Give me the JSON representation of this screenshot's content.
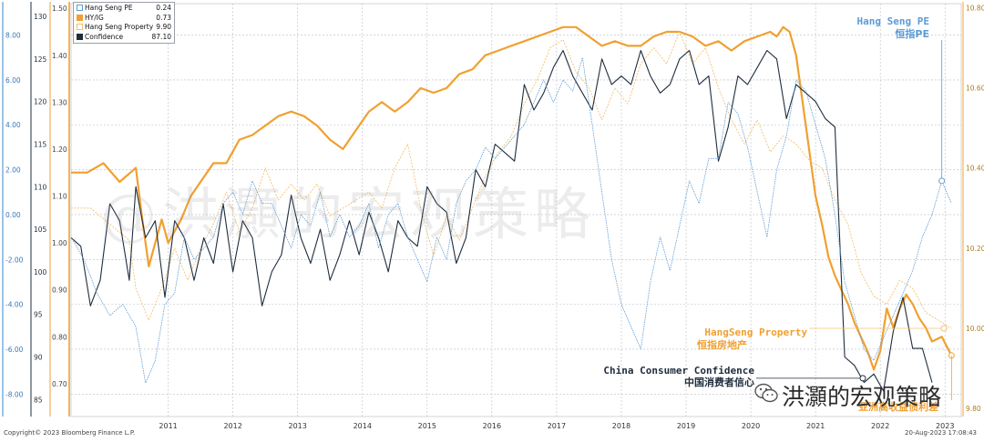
{
  "chart_data": {
    "type": "line",
    "x_ticks": [
      "2011",
      "2012",
      "2013",
      "2014",
      "2015",
      "2016",
      "2017",
      "2018",
      "2019",
      "2020",
      "2021",
      "2022",
      "2023"
    ],
    "axes": {
      "left_outer": {
        "ticks": [
          "8.00",
          "6.00",
          "4.00",
          "2.00",
          "0.00",
          "-2.00",
          "-4.00",
          "-6.00",
          "-8.00"
        ],
        "range": [
          -9,
          9.4
        ]
      },
      "left_2": {
        "ticks": [
          "130",
          "125",
          "120",
          "115",
          "110",
          "105",
          "100",
          "95",
          "90",
          "85"
        ],
        "range": [
          83,
          131.5
        ]
      },
      "left_3": {
        "ticks": [
          "1.50",
          "1.40",
          "1.30",
          "1.20",
          "1.10",
          "1.00",
          "0.90",
          "0.80",
          "0.70"
        ],
        "range": [
          0.63,
          1.51
        ]
      },
      "right": {
        "ticks": [
          "10.80",
          "10.60",
          "10.40",
          "10.20",
          "10.00",
          "9.80"
        ],
        "range": [
          9.78,
          10.81
        ]
      }
    },
    "legend": [
      {
        "name": "Hang Seng PE",
        "value": "0.24",
        "color": "#5b9bd5"
      },
      {
        "name": "HY/IG",
        "value": "0.73",
        "color": "#f0a030"
      },
      {
        "name": "Hang Seng Property",
        "value": "9.90",
        "color": "#f4c070"
      },
      {
        "name": "Confidence",
        "value": "87.10",
        "color": "#1f2d3d"
      }
    ],
    "annotations": {
      "pe_en": "Hang Seng PE",
      "pe_zh": "恒指PE",
      "property_en": "HangSeng Property",
      "property_zh": "恒指房地产",
      "confidence_en": "China Consumer Confidence",
      "confidence_zh": "中国消费者信心",
      "hyig_zh": "亚洲高收益债利差"
    },
    "series": [
      {
        "name": "HY/IG",
        "axis": "left_3",
        "color": "#f0a030",
        "x": [
          2010.0,
          2010.25,
          2010.5,
          2010.75,
          2011.0,
          2011.1,
          2011.2,
          2011.4,
          2011.5,
          2011.7,
          2011.85,
          2012.0,
          2012.2,
          2012.4,
          2012.6,
          2012.8,
          2013.0,
          2013.2,
          2013.4,
          2013.6,
          2013.8,
          2014.0,
          2014.2,
          2014.4,
          2014.6,
          2014.8,
          2015.0,
          2015.2,
          2015.4,
          2015.6,
          2015.8,
          2016.0,
          2016.2,
          2016.4,
          2016.6,
          2016.8,
          2017.0,
          2017.2,
          2017.4,
          2017.6,
          2017.8,
          2018.0,
          2018.2,
          2018.4,
          2018.6,
          2018.8,
          2019.0,
          2019.2,
          2019.4,
          2019.6,
          2019.8,
          2020.0,
          2020.2,
          2020.4,
          2020.6,
          2020.8,
          2020.9,
          2021.0,
          2021.1,
          2021.2,
          2021.3,
          2021.4,
          2021.5,
          2021.6,
          2021.7,
          2021.8,
          2021.9,
          2022.0,
          2022.1,
          2022.2,
          2022.3,
          2022.4,
          2022.5,
          2022.6,
          2022.7,
          2022.8,
          2022.9,
          2023.0,
          2023.1,
          2023.2,
          2023.3,
          2023.45,
          2023.6
        ],
        "values": [
          1.15,
          1.15,
          1.17,
          1.13,
          1.16,
          1.05,
          0.95,
          1.05,
          1.0,
          1.05,
          1.1,
          1.13,
          1.17,
          1.17,
          1.22,
          1.23,
          1.25,
          1.27,
          1.28,
          1.27,
          1.25,
          1.22,
          1.2,
          1.24,
          1.28,
          1.3,
          1.28,
          1.3,
          1.33,
          1.32,
          1.33,
          1.36,
          1.37,
          1.4,
          1.41,
          1.42,
          1.43,
          1.44,
          1.45,
          1.46,
          1.46,
          1.44,
          1.42,
          1.43,
          1.42,
          1.42,
          1.44,
          1.45,
          1.45,
          1.44,
          1.42,
          1.43,
          1.41,
          1.43,
          1.44,
          1.45,
          1.44,
          1.46,
          1.45,
          1.4,
          1.3,
          1.2,
          1.1,
          1.04,
          0.97,
          0.93,
          0.9,
          0.87,
          0.83,
          0.8,
          0.77,
          0.73,
          0.77,
          0.86,
          0.82,
          0.86,
          0.89,
          0.87,
          0.84,
          0.82,
          0.79,
          0.8,
          0.76
        ]
      },
      {
        "name": "Hang Seng Property",
        "axis": "right",
        "color": "#f4c070",
        "x": [
          2010.0,
          2010.3,
          2010.6,
          2010.9,
          2011.0,
          2011.2,
          2011.4,
          2011.6,
          2011.8,
          2012.0,
          2012.2,
          2012.4,
          2012.6,
          2012.8,
          2013.0,
          2013.2,
          2013.4,
          2013.6,
          2013.8,
          2014.0,
          2014.2,
          2014.4,
          2014.6,
          2014.8,
          2015.0,
          2015.2,
          2015.4,
          2015.6,
          2015.8,
          2016.0,
          2016.2,
          2016.4,
          2016.6,
          2016.8,
          2017.0,
          2017.2,
          2017.4,
          2017.6,
          2017.8,
          2018.0,
          2018.2,
          2018.4,
          2018.6,
          2018.8,
          2019.0,
          2019.2,
          2019.4,
          2019.6,
          2019.8,
          2020.0,
          2020.2,
          2020.4,
          2020.6,
          2020.8,
          2021.0,
          2021.2,
          2021.4,
          2021.6,
          2021.8,
          2022.0,
          2022.2,
          2022.4,
          2022.6,
          2022.8,
          2023.0,
          2023.2,
          2023.4,
          2023.6
        ],
        "values": [
          10.3,
          10.3,
          10.26,
          10.22,
          10.1,
          10.02,
          10.1,
          10.2,
          10.12,
          10.2,
          10.26,
          10.34,
          10.24,
          10.3,
          10.4,
          10.32,
          10.36,
          10.32,
          10.36,
          10.28,
          10.3,
          10.32,
          10.34,
          10.3,
          10.4,
          10.46,
          10.3,
          10.18,
          10.28,
          10.22,
          10.3,
          10.38,
          10.44,
          10.48,
          10.56,
          10.62,
          10.7,
          10.72,
          10.64,
          10.6,
          10.52,
          10.6,
          10.56,
          10.66,
          10.7,
          10.66,
          10.74,
          10.66,
          10.7,
          10.6,
          10.52,
          10.46,
          10.52,
          10.44,
          10.48,
          10.46,
          10.42,
          10.4,
          10.32,
          10.26,
          10.14,
          10.08,
          10.06,
          10.12,
          10.1,
          10.04,
          10.02,
          10.0
        ]
      },
      {
        "name": "Confidence",
        "axis": "left_2",
        "color": "#1f2d3d",
        "x": [
          2010.0,
          2010.15,
          2010.3,
          2010.45,
          2010.6,
          2010.75,
          2010.9,
          2011.0,
          2011.15,
          2011.3,
          2011.45,
          2011.6,
          2011.75,
          2011.9,
          2012.05,
          2012.2,
          2012.35,
          2012.5,
          2012.65,
          2012.8,
          2012.95,
          2013.1,
          2013.25,
          2013.4,
          2013.55,
          2013.7,
          2013.85,
          2014.0,
          2014.15,
          2014.3,
          2014.45,
          2014.6,
          2014.75,
          2014.9,
          2015.05,
          2015.2,
          2015.35,
          2015.5,
          2015.65,
          2015.8,
          2015.95,
          2016.1,
          2016.25,
          2016.4,
          2016.55,
          2016.7,
          2016.85,
          2017.0,
          2017.15,
          2017.3,
          2017.45,
          2017.6,
          2017.75,
          2017.9,
          2018.05,
          2018.2,
          2018.35,
          2018.5,
          2018.65,
          2018.8,
          2018.95,
          2019.1,
          2019.25,
          2019.4,
          2019.55,
          2019.7,
          2019.85,
          2020.0,
          2020.15,
          2020.3,
          2020.45,
          2020.6,
          2020.75,
          2020.9,
          2021.05,
          2021.2,
          2021.35,
          2021.5,
          2021.65,
          2021.8,
          2021.95,
          2022.1,
          2022.25,
          2022.4,
          2022.55,
          2022.7,
          2022.85,
          2023.0,
          2023.15,
          2023.3
        ],
        "values": [
          104,
          103,
          96,
          99,
          108,
          106,
          99,
          110,
          104,
          106,
          97,
          106,
          104,
          99,
          104,
          101,
          108,
          100,
          106,
          104,
          96,
          100,
          102,
          109,
          104,
          101,
          105,
          99,
          102,
          106,
          102,
          107,
          104,
          100,
          106,
          104,
          103,
          110,
          108,
          107,
          101,
          104,
          112,
          110,
          115,
          114,
          113,
          122,
          119,
          121,
          124,
          126,
          123,
          121,
          119,
          125,
          122,
          123,
          122,
          126,
          123,
          121,
          122,
          125,
          126,
          122,
          123,
          113,
          117,
          123,
          122,
          124,
          126,
          125,
          118,
          122,
          121,
          120,
          118,
          117,
          90,
          89,
          87,
          88,
          86,
          93,
          97,
          91,
          91,
          87
        ]
      },
      {
        "name": "Hang Seng PE",
        "axis": "left_outer",
        "color": "#5b9bd5",
        "x": [
          2010.0,
          2010.2,
          2010.4,
          2010.6,
          2010.8,
          2011.0,
          2011.15,
          2011.3,
          2011.45,
          2011.6,
          2011.75,
          2011.9,
          2012.05,
          2012.2,
          2012.35,
          2012.5,
          2012.65,
          2012.8,
          2012.95,
          2013.1,
          2013.25,
          2013.4,
          2013.55,
          2013.7,
          2013.85,
          2014.0,
          2014.15,
          2014.3,
          2014.45,
          2014.6,
          2014.75,
          2014.9,
          2015.05,
          2015.2,
          2015.35,
          2015.5,
          2015.65,
          2015.8,
          2015.95,
          2016.1,
          2016.25,
          2016.4,
          2016.55,
          2016.7,
          2016.85,
          2017.0,
          2017.15,
          2017.3,
          2017.45,
          2017.6,
          2017.75,
          2017.9,
          2018.05,
          2018.2,
          2018.35,
          2018.5,
          2018.65,
          2018.8,
          2018.95,
          2019.1,
          2019.25,
          2019.4,
          2019.55,
          2019.7,
          2019.85,
          2020.0,
          2020.15,
          2020.3,
          2020.45,
          2020.6,
          2020.75,
          2020.9,
          2021.05,
          2021.2,
          2021.35,
          2021.5,
          2021.65,
          2021.8,
          2021.95,
          2022.1,
          2022.25,
          2022.4,
          2022.55,
          2022.7,
          2022.85,
          2023.0,
          2023.15,
          2023.3,
          2023.45,
          2023.6
        ],
        "values": [
          -1.0,
          -2.0,
          -3.5,
          -4.5,
          -4.0,
          -5.0,
          -7.5,
          -6.5,
          -4.0,
          -3.5,
          -1.0,
          -2.0,
          -1.5,
          -1.0,
          0.5,
          1.0,
          0.0,
          1.5,
          0.5,
          0.5,
          -0.5,
          -1.5,
          0.0,
          -0.5,
          1.0,
          -1.0,
          0.0,
          -1.0,
          -0.5,
          0.5,
          -1.5,
          0.0,
          0.5,
          -1.0,
          -2.0,
          -3.0,
          -1.0,
          -2.0,
          0.5,
          1.5,
          2.0,
          3.0,
          2.5,
          3.0,
          3.5,
          4.0,
          5.0,
          6.0,
          5.0,
          6.0,
          5.5,
          7.0,
          4.0,
          1.0,
          -2.0,
          -4.0,
          -5.0,
          -6.0,
          -3.0,
          -1.0,
          -2.5,
          -0.5,
          1.5,
          0.5,
          2.5,
          2.5,
          5.0,
          4.5,
          3.0,
          1.0,
          -1.0,
          2.0,
          3.5,
          6.0,
          5.5,
          4.0,
          2.5,
          0.0,
          -3.0,
          -4.5,
          -6.0,
          -6.5,
          -5.5,
          -4.5,
          -3.5,
          -2.5,
          -1.0,
          0.0,
          1.5,
          0.5
        ]
      }
    ]
  },
  "footer": {
    "copyright": "Copyright© 2023 Bloomberg Finance L.P.",
    "timestamp": "20-Aug-2023 17:08:43"
  },
  "watermark": "@洪灝的宏观策略",
  "brand": "洪灝的宏观策略"
}
